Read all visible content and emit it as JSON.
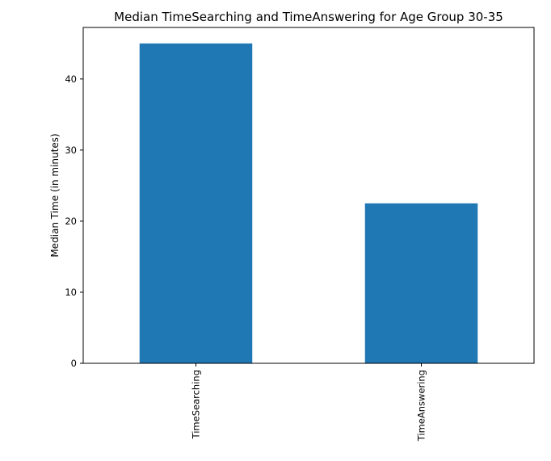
{
  "chart_data": {
    "type": "bar",
    "title": "Median TimeSearching and TimeAnswering for Age Group 30-35",
    "xlabel": "",
    "ylabel": "Median Time (in minutes)",
    "categories": [
      "TimeSearching",
      "TimeAnswering"
    ],
    "values": [
      45,
      22.5
    ],
    "ylim": [
      0,
      47.25
    ],
    "yticks": [
      0,
      10,
      20,
      30,
      40
    ],
    "ytick_labels": [
      "0",
      "10",
      "20",
      "30",
      "40"
    ],
    "grid": false,
    "legend": "none",
    "bar_color": "#1f77b4"
  }
}
